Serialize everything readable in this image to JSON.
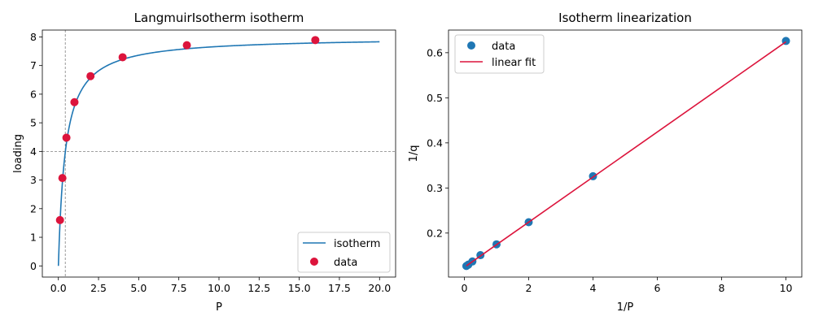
{
  "chart_data": [
    {
      "type": "line+scatter",
      "title": "LangmuirIsotherm isotherm",
      "xlabel": "P",
      "ylabel": "loading",
      "xlim": [
        -1.0,
        21.0
      ],
      "ylim": [
        -0.39,
        8.24
      ],
      "xticks": [
        0.0,
        2.5,
        5.0,
        7.5,
        10.0,
        12.5,
        15.0,
        17.5,
        20.0
      ],
      "xtick_labels": [
        "0.0",
        "2.5",
        "5.0",
        "7.5",
        "10.0",
        "12.5",
        "15.0",
        "17.5",
        "20.0"
      ],
      "yticks": [
        0,
        1,
        2,
        3,
        4,
        5,
        6,
        7,
        8
      ],
      "ytick_labels": [
        "0",
        "1",
        "2",
        "3",
        "4",
        "5",
        "6",
        "7",
        "8"
      ],
      "reference_lines": {
        "vertical_x": 0.43,
        "horizontal_y": 4.0
      },
      "legend_position": "lower-right",
      "series": [
        {
          "name": "isotherm",
          "kind": "line",
          "color": "#1f77b4",
          "model": {
            "q_max": 8.0,
            "K": 2.3
          },
          "x_range": [
            0,
            20
          ]
        },
        {
          "name": "data",
          "kind": "scatter",
          "color": "#dc143c",
          "x": [
            0.1,
            0.25,
            0.5,
            1.0,
            2.0,
            4.0,
            8.0,
            16.0
          ],
          "y": [
            1.6,
            3.07,
            4.48,
            5.72,
            6.63,
            7.29,
            7.71,
            7.89
          ]
        }
      ]
    },
    {
      "type": "line+scatter",
      "title": "Isotherm linearization",
      "xlabel": "1/P",
      "ylabel": "1/q",
      "xlim": [
        -0.4928,
        10.4928
      ],
      "ylim": [
        0.1024,
        0.6502
      ],
      "xticks": [
        0,
        2,
        4,
        6,
        8,
        10
      ],
      "xtick_labels": [
        "0",
        "2",
        "4",
        "6",
        "8",
        "10"
      ],
      "yticks": [
        0.2,
        0.3,
        0.4,
        0.5,
        0.6
      ],
      "ytick_labels": [
        "0.2",
        "0.3",
        "0.4",
        "0.5",
        "0.6"
      ],
      "legend_position": "upper-left",
      "series": [
        {
          "name": "data",
          "kind": "scatter",
          "color": "#1f77b4",
          "x": [
            0.0625,
            0.125,
            0.25,
            0.5,
            1.0,
            2.0,
            4.0,
            10.0
          ],
          "y": [
            0.127,
            0.13,
            0.137,
            0.151,
            0.175,
            0.224,
            0.326,
            0.626
          ]
        },
        {
          "name": "linear fit",
          "kind": "line",
          "color": "#dc143c",
          "x": [
            0.0625,
            10.0
          ],
          "y": [
            0.1273,
            0.6242
          ]
        }
      ]
    }
  ]
}
